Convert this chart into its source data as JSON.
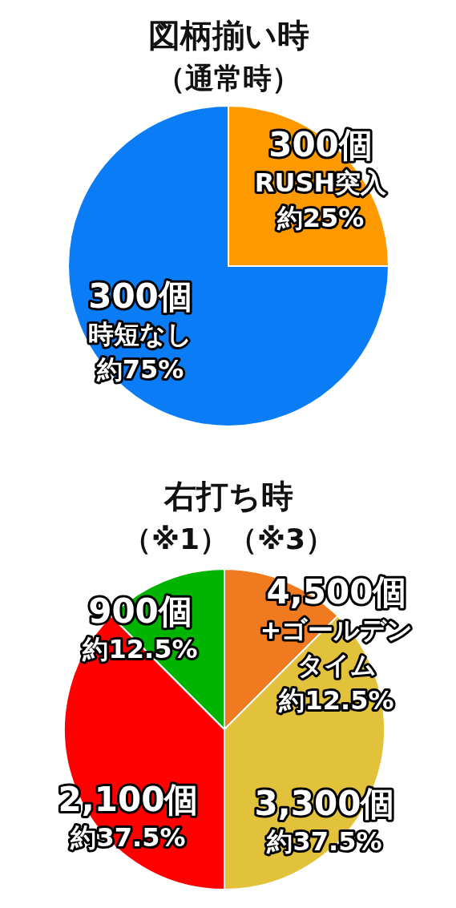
{
  "chart_data": [
    {
      "type": "pie",
      "title": "図柄揃い時",
      "subtitle": "（通常時）",
      "categories": [
        "300個RUSH突入",
        "300個時短なし"
      ],
      "values": [
        25,
        75
      ],
      "colors": [
        "#ff9900",
        "#0a7cf5"
      ],
      "value_labels": [
        "約25%",
        "約75%"
      ]
    },
    {
      "type": "pie",
      "title": "右打ち時",
      "subtitle": "（※1）（※3）",
      "categories": [
        "4,500個+ゴールデンタイム",
        "3,300個",
        "2,100個",
        "900個"
      ],
      "values": [
        12.5,
        37.5,
        37.5,
        12.5
      ],
      "colors": [
        "#f07a20",
        "#e2c23a",
        "#ff0000",
        "#00b400"
      ],
      "value_labels": [
        "約12.5%",
        "約37.5%",
        "約37.5%",
        "約12.5%"
      ]
    }
  ]
}
